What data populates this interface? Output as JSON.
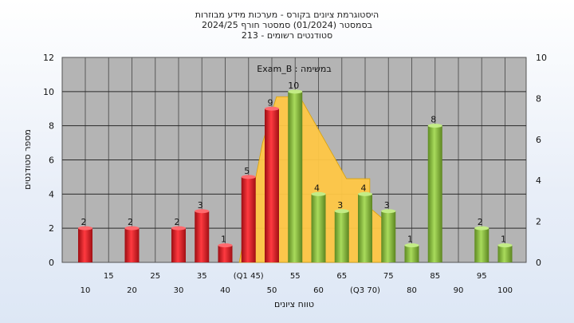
{
  "colors": {
    "plot_bg": "#b4b4b4",
    "red_bar": "#e8262c",
    "green_bar": "#8dc63f",
    "area_fill": "#ffc846"
  },
  "chart_data": {
    "type": "bar",
    "title_lines": [
      "היסטוגרמת ציונים בקורס - מערכות מידע מבוזרות",
      "בסמסטר  (01/2024)  סמסטר חורף 2024/25",
      "213 - סטודנטים רשומים"
    ],
    "exam_label": "Exam_B : במשימה",
    "xlabel": "טווח ציונים",
    "ylabel": "מספר סטודנטים",
    "ylim": [
      0,
      12
    ],
    "yticks": [
      0,
      2,
      4,
      6,
      8,
      10,
      12
    ],
    "y2lim": [
      0,
      10
    ],
    "y2ticks": [
      0,
      2,
      4,
      6,
      8,
      10
    ],
    "x_tick_labels_bottom": [
      "10",
      "20",
      "30",
      "40",
      "50",
      "60",
      "(Q3 70)",
      "80",
      "90",
      "100"
    ],
    "x_tick_labels_top": [
      "15",
      "25",
      "35",
      "(Q1 45)",
      "55",
      "65",
      "75",
      "85",
      "95"
    ],
    "bars": [
      {
        "x": 10,
        "value": 2,
        "color": "red"
      },
      {
        "x": 20,
        "value": 2,
        "color": "red"
      },
      {
        "x": 30,
        "value": 2,
        "color": "red"
      },
      {
        "x": 35,
        "value": 3,
        "color": "red"
      },
      {
        "x": 40,
        "value": 1,
        "color": "red"
      },
      {
        "x": 45,
        "value": 5,
        "color": "red"
      },
      {
        "x": 50,
        "value": 9,
        "color": "red"
      },
      {
        "x": 55,
        "value": 10,
        "color": "green"
      },
      {
        "x": 60,
        "value": 4,
        "color": "green"
      },
      {
        "x": 65,
        "value": 3,
        "color": "green"
      },
      {
        "x": 70,
        "value": 4,
        "color": "green"
      },
      {
        "x": 75,
        "value": 3,
        "color": "green"
      },
      {
        "x": 80,
        "value": 1,
        "color": "green"
      },
      {
        "x": 85,
        "value": 8,
        "color": "green"
      },
      {
        "x": 95,
        "value": 2,
        "color": "green"
      },
      {
        "x": 100,
        "value": 1,
        "color": "green"
      }
    ],
    "area": [
      {
        "x": 43,
        "y": 0
      },
      {
        "x": 48,
        "y": 7
      },
      {
        "x": 51,
        "y": 9.7
      },
      {
        "x": 56,
        "y": 9.7
      },
      {
        "x": 66,
        "y": 4.9
      },
      {
        "x": 71,
        "y": 4.9
      },
      {
        "x": 71,
        "y": 3.2
      },
      {
        "x": 74,
        "y": 2.5
      },
      {
        "x": 74.6,
        "y": 1.8
      },
      {
        "x": 75,
        "y": 0
      }
    ],
    "grid": true
  }
}
